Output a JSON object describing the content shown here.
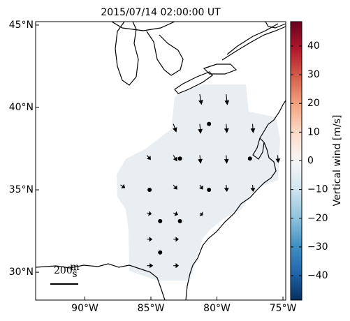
{
  "chart_data": {
    "type": "vector_map",
    "title": "2015/07/14 02:00:00 UT",
    "lonlim": [
      -93.73,
      -74.79
    ],
    "latlim": [
      28.31,
      45.21
    ],
    "xticks": [
      {
        "value": -90,
        "label": "90°W"
      },
      {
        "value": -85,
        "label": "85°W"
      },
      {
        "value": -80,
        "label": "80°W"
      },
      {
        "value": -75,
        "label": "75°W"
      }
    ],
    "yticks": [
      {
        "value": 30,
        "label": "30°N"
      },
      {
        "value": 35,
        "label": "35°N"
      },
      {
        "value": 40,
        "label": "40°N"
      },
      {
        "value": 45,
        "label": "45°N"
      }
    ],
    "field_color": "#e8eef1",
    "vectors": [
      {
        "lon": -81.3,
        "lat": 40.8,
        "u": 12,
        "v": -70
      },
      {
        "lon": -79.3,
        "lat": 40.8,
        "u": 8,
        "v": -72
      },
      {
        "lon": -83.3,
        "lat": 39.0,
        "u": 20,
        "v": -55
      },
      {
        "lon": -81.3,
        "lat": 39.0,
        "u": 6,
        "v": -65
      },
      {
        "lon": -80.6,
        "lat": 39.0,
        "u": 0,
        "v": 0
      },
      {
        "lon": -79.3,
        "lat": 39.0,
        "u": 5,
        "v": -60
      },
      {
        "lon": -77.3,
        "lat": 39.0,
        "u": 4,
        "v": -60
      },
      {
        "lon": -85.3,
        "lat": 37.1,
        "u": 25,
        "v": -30
      },
      {
        "lon": -83.3,
        "lat": 37.1,
        "u": 25,
        "v": -40
      },
      {
        "lon": -82.8,
        "lat": 36.9,
        "u": 0,
        "v": 0
      },
      {
        "lon": -81.3,
        "lat": 37.1,
        "u": 6,
        "v": -55
      },
      {
        "lon": -79.3,
        "lat": 37.1,
        "u": 4,
        "v": -55
      },
      {
        "lon": -77.5,
        "lat": 36.9,
        "u": 0,
        "v": 0
      },
      {
        "lon": -75.4,
        "lat": 37.1,
        "u": 4,
        "v": -50
      },
      {
        "lon": -87.3,
        "lat": 35.3,
        "u": 30,
        "v": -20
      },
      {
        "lon": -85.1,
        "lat": 35.0,
        "u": 0,
        "v": 0
      },
      {
        "lon": -83.3,
        "lat": 35.3,
        "u": 25,
        "v": -30
      },
      {
        "lon": -81.3,
        "lat": 35.3,
        "u": 20,
        "v": -30
      },
      {
        "lon": -80.6,
        "lat": 35.0,
        "u": 0,
        "v": 0
      },
      {
        "lon": -79.3,
        "lat": 35.3,
        "u": 5,
        "v": -45
      },
      {
        "lon": -77.3,
        "lat": 35.3,
        "u": 4,
        "v": -45
      },
      {
        "lon": -85.3,
        "lat": 33.6,
        "u": 30,
        "v": -8
      },
      {
        "lon": -83.3,
        "lat": 33.6,
        "u": 30,
        "v": -12
      },
      {
        "lon": -84.3,
        "lat": 33.1,
        "u": 0,
        "v": 0
      },
      {
        "lon": -82.8,
        "lat": 33.1,
        "u": 0,
        "v": 0
      },
      {
        "lon": -81.3,
        "lat": 33.6,
        "u": 20,
        "v": -15
      },
      {
        "lon": -85.3,
        "lat": 32.0,
        "u": 35,
        "v": 0
      },
      {
        "lon": -83.3,
        "lat": 32.0,
        "u": 35,
        "v": 0
      },
      {
        "lon": -84.3,
        "lat": 31.2,
        "u": 0,
        "v": 0
      },
      {
        "lon": -85.3,
        "lat": 30.4,
        "u": 40,
        "v": 0
      },
      {
        "lon": -83.3,
        "lat": 30.4,
        "u": 35,
        "v": 0
      }
    ],
    "scale_value": 200,
    "scale_unit_num": "m",
    "scale_unit_den": "s",
    "colorbar": {
      "label": "Vertical wind [m/s]",
      "ylim": [
        -48.5,
        48.5
      ],
      "yticks": [
        {
          "value": -40,
          "label": "−40"
        },
        {
          "value": -30,
          "label": "−30"
        },
        {
          "value": -20,
          "label": "−20"
        },
        {
          "value": -10,
          "label": "−10"
        },
        0,
        10,
        20,
        30,
        40
      ],
      "colormap": [
        "#053061",
        "#2166ac",
        "#4393c3",
        "#92c5de",
        "#d1e5f0",
        "#f7f7f7",
        "#fddbc7",
        "#f4a582",
        "#d6604d",
        "#b2182b",
        "#67001f"
      ]
    }
  }
}
